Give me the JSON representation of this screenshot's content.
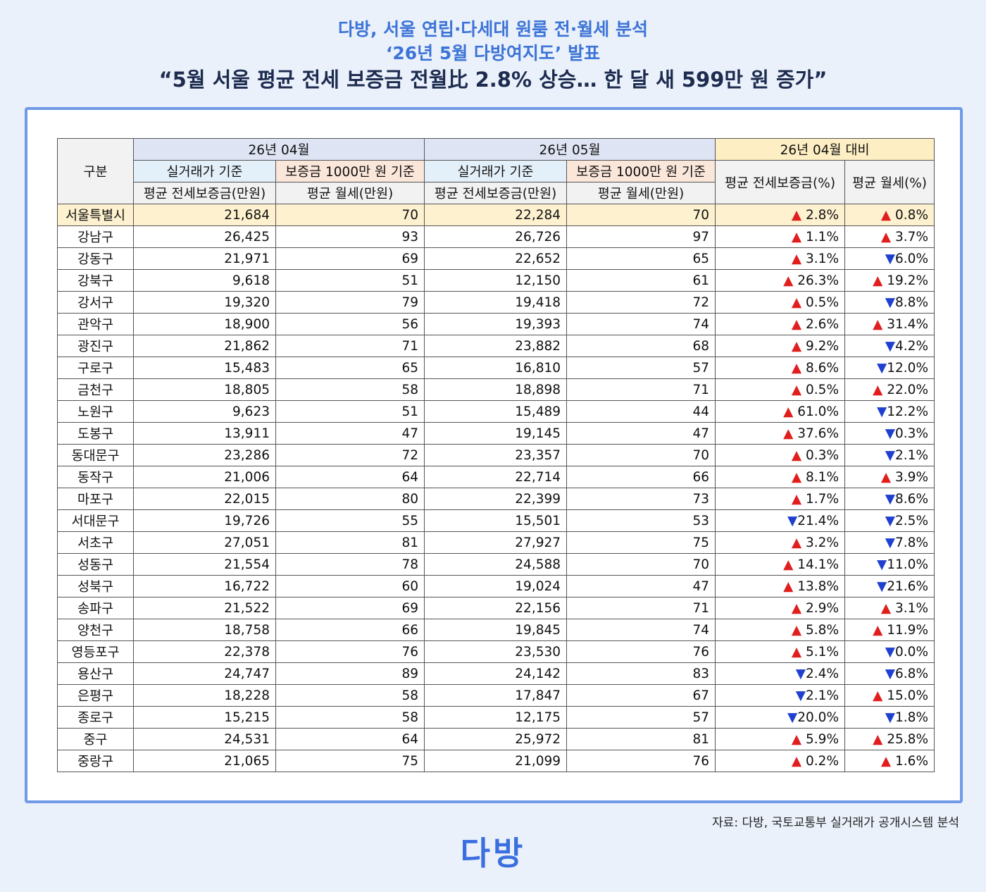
{
  "header": {
    "line1": "다방, 서울 연립·다세대 원룸 전·월세 분석",
    "line2": "‘26년 5월 다방여지도’ 발표",
    "headline": "“5월 서울 평균 전세 보증금 전월比 2.8% 상승… 한 달 새 599만 원 증가”"
  },
  "table": {
    "corner": "구분",
    "groups": [
      "26년 04월",
      "26년 05월",
      "26년 04월 대비"
    ],
    "bases": [
      "실거래가 기준",
      "보증금 1000만 원 기준",
      "실거래가 기준",
      "보증금 1000만 원 기준"
    ],
    "measures": [
      "평균 전세보증금(만원)",
      "평균 월세(만원)",
      "평균 전세보증금(만원)",
      "평균 월세(만원)",
      "평균 전세보증금(%)",
      "평균 월세(%)"
    ],
    "rows": [
      [
        "서울특별시",
        "21,684",
        "70",
        "22,284",
        "70",
        "▲ 2.8%",
        "▲ 0.8%"
      ],
      [
        "강남구",
        "26,425",
        "93",
        "26,726",
        "97",
        "▲ 1.1%",
        "▲ 3.7%"
      ],
      [
        "강동구",
        "21,971",
        "69",
        "22,652",
        "65",
        "▲ 3.1%",
        "▼6.0%"
      ],
      [
        "강북구",
        "9,618",
        "51",
        "12,150",
        "61",
        "▲ 26.3%",
        "▲ 19.2%"
      ],
      [
        "강서구",
        "19,320",
        "79",
        "19,418",
        "72",
        "▲ 0.5%",
        "▼8.8%"
      ],
      [
        "관악구",
        "18,900",
        "56",
        "19,393",
        "74",
        "▲ 2.6%",
        "▲ 31.4%"
      ],
      [
        "광진구",
        "21,862",
        "71",
        "23,882",
        "68",
        "▲ 9.2%",
        "▼4.2%"
      ],
      [
        "구로구",
        "15,483",
        "65",
        "16,810",
        "57",
        "▲ 8.6%",
        "▼12.0%"
      ],
      [
        "금천구",
        "18,805",
        "58",
        "18,898",
        "71",
        "▲ 0.5%",
        "▲ 22.0%"
      ],
      [
        "노원구",
        "9,623",
        "51",
        "15,489",
        "44",
        "▲ 61.0%",
        "▼12.2%"
      ],
      [
        "도봉구",
        "13,911",
        "47",
        "19,145",
        "47",
        "▲ 37.6%",
        "▼0.3%"
      ],
      [
        "동대문구",
        "23,286",
        "72",
        "23,357",
        "70",
        "▲ 0.3%",
        "▼2.1%"
      ],
      [
        "동작구",
        "21,006",
        "64",
        "22,714",
        "66",
        "▲ 8.1%",
        "▲ 3.9%"
      ],
      [
        "마포구",
        "22,015",
        "80",
        "22,399",
        "73",
        "▲ 1.7%",
        "▼8.6%"
      ],
      [
        "서대문구",
        "19,726",
        "55",
        "15,501",
        "53",
        "▼21.4%",
        "▼2.5%"
      ],
      [
        "서초구",
        "27,051",
        "81",
        "27,927",
        "75",
        "▲ 3.2%",
        "▼7.8%"
      ],
      [
        "성동구",
        "21,554",
        "78",
        "24,588",
        "70",
        "▲ 14.1%",
        "▼11.0%"
      ],
      [
        "성북구",
        "16,722",
        "60",
        "19,024",
        "47",
        "▲ 13.8%",
        "▼21.6%"
      ],
      [
        "송파구",
        "21,522",
        "69",
        "22,156",
        "71",
        "▲ 2.9%",
        "▲ 3.1%"
      ],
      [
        "양천구",
        "18,758",
        "66",
        "19,845",
        "74",
        "▲ 5.8%",
        "▲ 11.9%"
      ],
      [
        "영등포구",
        "22,378",
        "76",
        "23,530",
        "76",
        "▲ 5.1%",
        "▼0.0%"
      ],
      [
        "용산구",
        "24,747",
        "89",
        "24,142",
        "83",
        "▼2.4%",
        "▼6.8%"
      ],
      [
        "은평구",
        "18,228",
        "58",
        "17,847",
        "67",
        "▼2.1%",
        "▲ 15.0%"
      ],
      [
        "종로구",
        "15,215",
        "58",
        "12,175",
        "57",
        "▼20.0%",
        "▼1.8%"
      ],
      [
        "중구",
        "24,531",
        "64",
        "25,972",
        "81",
        "▲ 5.9%",
        "▲ 25.8%"
      ],
      [
        "중랑구",
        "21,065",
        "75",
        "21,099",
        "76",
        "▲ 0.2%",
        "▲ 1.6%"
      ]
    ]
  },
  "footer": {
    "source": "자료: 다방, 국토교통부 실거래가 공개시스템 분석",
    "logo": "다방"
  }
}
